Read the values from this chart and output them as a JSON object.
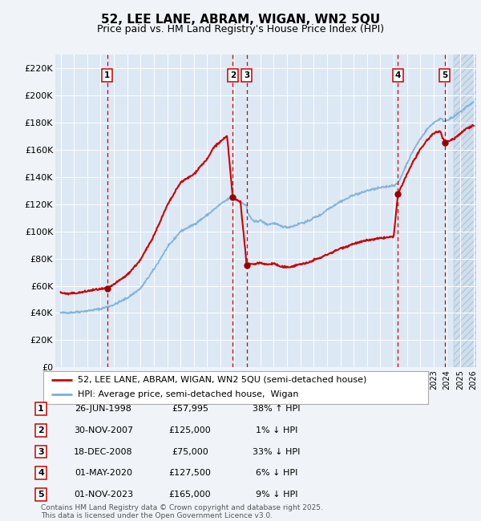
{
  "title": "52, LEE LANE, ABRAM, WIGAN, WN2 5QU",
  "subtitle": "Price paid vs. HM Land Registry's House Price Index (HPI)",
  "ylim": [
    0,
    230000
  ],
  "yticks": [
    0,
    20000,
    40000,
    60000,
    80000,
    100000,
    120000,
    140000,
    160000,
    180000,
    200000,
    220000
  ],
  "ytick_labels": [
    "£0",
    "£20K",
    "£40K",
    "£60K",
    "£80K",
    "£100K",
    "£120K",
    "£140K",
    "£160K",
    "£180K",
    "£200K",
    "£220K"
  ],
  "xlim_start": 1994.6,
  "xlim_end": 2026.2,
  "background_color": "#f0f4f8",
  "plot_bg_color": "#dce8f4",
  "grid_color": "#ffffff",
  "hatch_start": 2024.5,
  "sale_dates_x": [
    1998.49,
    2007.92,
    2008.97,
    2020.33,
    2023.84
  ],
  "sale_prices": [
    57995,
    125000,
    75000,
    127500,
    165000
  ],
  "sale_labels": [
    "1",
    "2",
    "3",
    "4",
    "5"
  ],
  "sale_table": [
    [
      "1",
      "26-JUN-1998",
      "£57,995",
      "38% ↑ HPI"
    ],
    [
      "2",
      "30-NOV-2007",
      "£125,000",
      "1% ↓ HPI"
    ],
    [
      "3",
      "18-DEC-2008",
      "£75,000",
      "33% ↓ HPI"
    ],
    [
      "4",
      "01-MAY-2020",
      "£127,500",
      "6% ↓ HPI"
    ],
    [
      "5",
      "01-NOV-2023",
      "£165,000",
      "9% ↓ HPI"
    ]
  ],
  "legend_line1": "52, LEE LANE, ABRAM, WIGAN, WN2 5QU (semi-detached house)",
  "legend_line2": "HPI: Average price, semi-detached house,  Wigan",
  "footer": "Contains HM Land Registry data © Crown copyright and database right 2025.\nThis data is licensed under the Open Government Licence v3.0.",
  "red_line_color": "#cc0000",
  "blue_line_color": "#7bafd4",
  "dashed_line_color": "#cc0000",
  "dot_color": "#990000",
  "hpi_keypoints": [
    [
      1995.0,
      40000
    ],
    [
      1996.0,
      40500
    ],
    [
      1997.0,
      41500
    ],
    [
      1998.0,
      43000
    ],
    [
      1999.0,
      46000
    ],
    [
      2000.0,
      51000
    ],
    [
      2001.0,
      58000
    ],
    [
      2002.0,
      72000
    ],
    [
      2003.0,
      88000
    ],
    [
      2004.0,
      100000
    ],
    [
      2005.0,
      105000
    ],
    [
      2006.0,
      112000
    ],
    [
      2007.0,
      120000
    ],
    [
      2007.92,
      126000
    ],
    [
      2008.0,
      124000
    ],
    [
      2008.97,
      119000
    ],
    [
      2009.0,
      114000
    ],
    [
      2009.5,
      107000
    ],
    [
      2010.0,
      108000
    ],
    [
      2010.5,
      105000
    ],
    [
      2011.0,
      106000
    ],
    [
      2011.5,
      104000
    ],
    [
      2012.0,
      103000
    ],
    [
      2012.5,
      104000
    ],
    [
      2013.0,
      106000
    ],
    [
      2013.5,
      107000
    ],
    [
      2014.0,
      110000
    ],
    [
      2014.5,
      112000
    ],
    [
      2015.0,
      116000
    ],
    [
      2015.5,
      119000
    ],
    [
      2016.0,
      122000
    ],
    [
      2016.5,
      124000
    ],
    [
      2017.0,
      127000
    ],
    [
      2017.5,
      128000
    ],
    [
      2018.0,
      130000
    ],
    [
      2018.5,
      131000
    ],
    [
      2019.0,
      132000
    ],
    [
      2019.5,
      133000
    ],
    [
      2020.0,
      134000
    ],
    [
      2020.33,
      135000
    ],
    [
      2021.0,
      150000
    ],
    [
      2021.5,
      160000
    ],
    [
      2022.0,
      168000
    ],
    [
      2022.5,
      175000
    ],
    [
      2023.0,
      180000
    ],
    [
      2023.5,
      183000
    ],
    [
      2023.84,
      181000
    ],
    [
      2024.0,
      182000
    ],
    [
      2024.5,
      184000
    ],
    [
      2025.0,
      188000
    ],
    [
      2025.5,
      192000
    ],
    [
      2026.0,
      195000
    ]
  ],
  "red_keypoints": [
    [
      1995.0,
      55000
    ],
    [
      1995.5,
      54000
    ],
    [
      1996.0,
      54500
    ],
    [
      1996.5,
      55000
    ],
    [
      1997.0,
      56000
    ],
    [
      1997.5,
      57000
    ],
    [
      1998.0,
      57500
    ],
    [
      1998.49,
      57995
    ],
    [
      1999.0,
      61000
    ],
    [
      2000.0,
      68000
    ],
    [
      2001.0,
      79000
    ],
    [
      2002.0,
      97000
    ],
    [
      2003.0,
      119000
    ],
    [
      2004.0,
      136000
    ],
    [
      2005.0,
      142000
    ],
    [
      2005.5,
      148000
    ],
    [
      2006.0,
      153000
    ],
    [
      2006.5,
      162000
    ],
    [
      2007.0,
      166000
    ],
    [
      2007.5,
      170000
    ],
    [
      2007.92,
      125000
    ],
    [
      2008.0,
      124000
    ],
    [
      2008.5,
      122000
    ],
    [
      2008.97,
      75000
    ],
    [
      2009.0,
      75500
    ],
    [
      2009.5,
      76000
    ],
    [
      2010.0,
      77000
    ],
    [
      2010.5,
      75500
    ],
    [
      2011.0,
      76500
    ],
    [
      2011.5,
      74000
    ],
    [
      2012.0,
      73500
    ],
    [
      2012.5,
      74500
    ],
    [
      2013.0,
      76000
    ],
    [
      2013.5,
      76500
    ],
    [
      2014.0,
      79000
    ],
    [
      2014.5,
      80500
    ],
    [
      2015.0,
      83000
    ],
    [
      2015.5,
      85000
    ],
    [
      2016.0,
      87500
    ],
    [
      2016.5,
      89000
    ],
    [
      2017.0,
      91000
    ],
    [
      2017.5,
      92000
    ],
    [
      2018.0,
      93500
    ],
    [
      2018.5,
      94000
    ],
    [
      2019.0,
      95000
    ],
    [
      2019.5,
      95500
    ],
    [
      2020.0,
      96000
    ],
    [
      2020.33,
      127500
    ],
    [
      2021.0,
      142000
    ],
    [
      2021.5,
      152000
    ],
    [
      2022.0,
      160000
    ],
    [
      2022.5,
      167000
    ],
    [
      2023.0,
      172000
    ],
    [
      2023.5,
      174000
    ],
    [
      2023.84,
      165000
    ],
    [
      2024.0,
      166000
    ],
    [
      2024.5,
      168000
    ],
    [
      2025.0,
      172000
    ],
    [
      2025.5,
      176000
    ],
    [
      2026.0,
      178000
    ]
  ]
}
